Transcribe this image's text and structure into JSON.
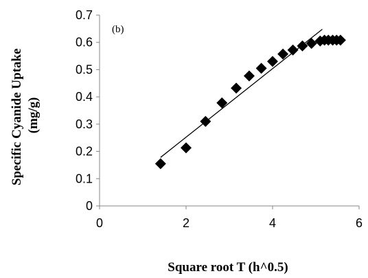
{
  "chart_data": {
    "type": "scatter",
    "panel_label": "(b)",
    "xlabel": "Square root T (h^0.5)",
    "ylabel_line1": "Specific Cyanide Uptake",
    "ylabel_line2": "(mg/g)",
    "xlim": [
      0,
      6
    ],
    "ylim": [
      0,
      0.7
    ],
    "x_ticks": [
      0,
      2,
      4,
      6
    ],
    "y_ticks": [
      0,
      0.1,
      0.2,
      0.3,
      0.4,
      0.5,
      0.6,
      0.7
    ],
    "grid": false,
    "legend": "none",
    "marker": "diamond",
    "marker_color": "#000000",
    "series": [
      {
        "x": [
          1.41,
          2.0,
          2.45,
          2.83,
          3.16,
          3.46,
          3.74,
          4.0,
          4.24,
          4.47,
          4.69,
          4.9,
          5.1,
          5.2,
          5.29,
          5.39,
          5.48,
          5.57
        ],
        "y": [
          0.155,
          0.213,
          0.31,
          0.378,
          0.432,
          0.477,
          0.505,
          0.53,
          0.557,
          0.572,
          0.587,
          0.596,
          0.605,
          0.608,
          0.608,
          0.608,
          0.608,
          0.608
        ]
      }
    ],
    "trendline": {
      "type": "linear",
      "x": [
        1.41,
        5.15
      ],
      "y": [
        0.178,
        0.648
      ]
    }
  }
}
